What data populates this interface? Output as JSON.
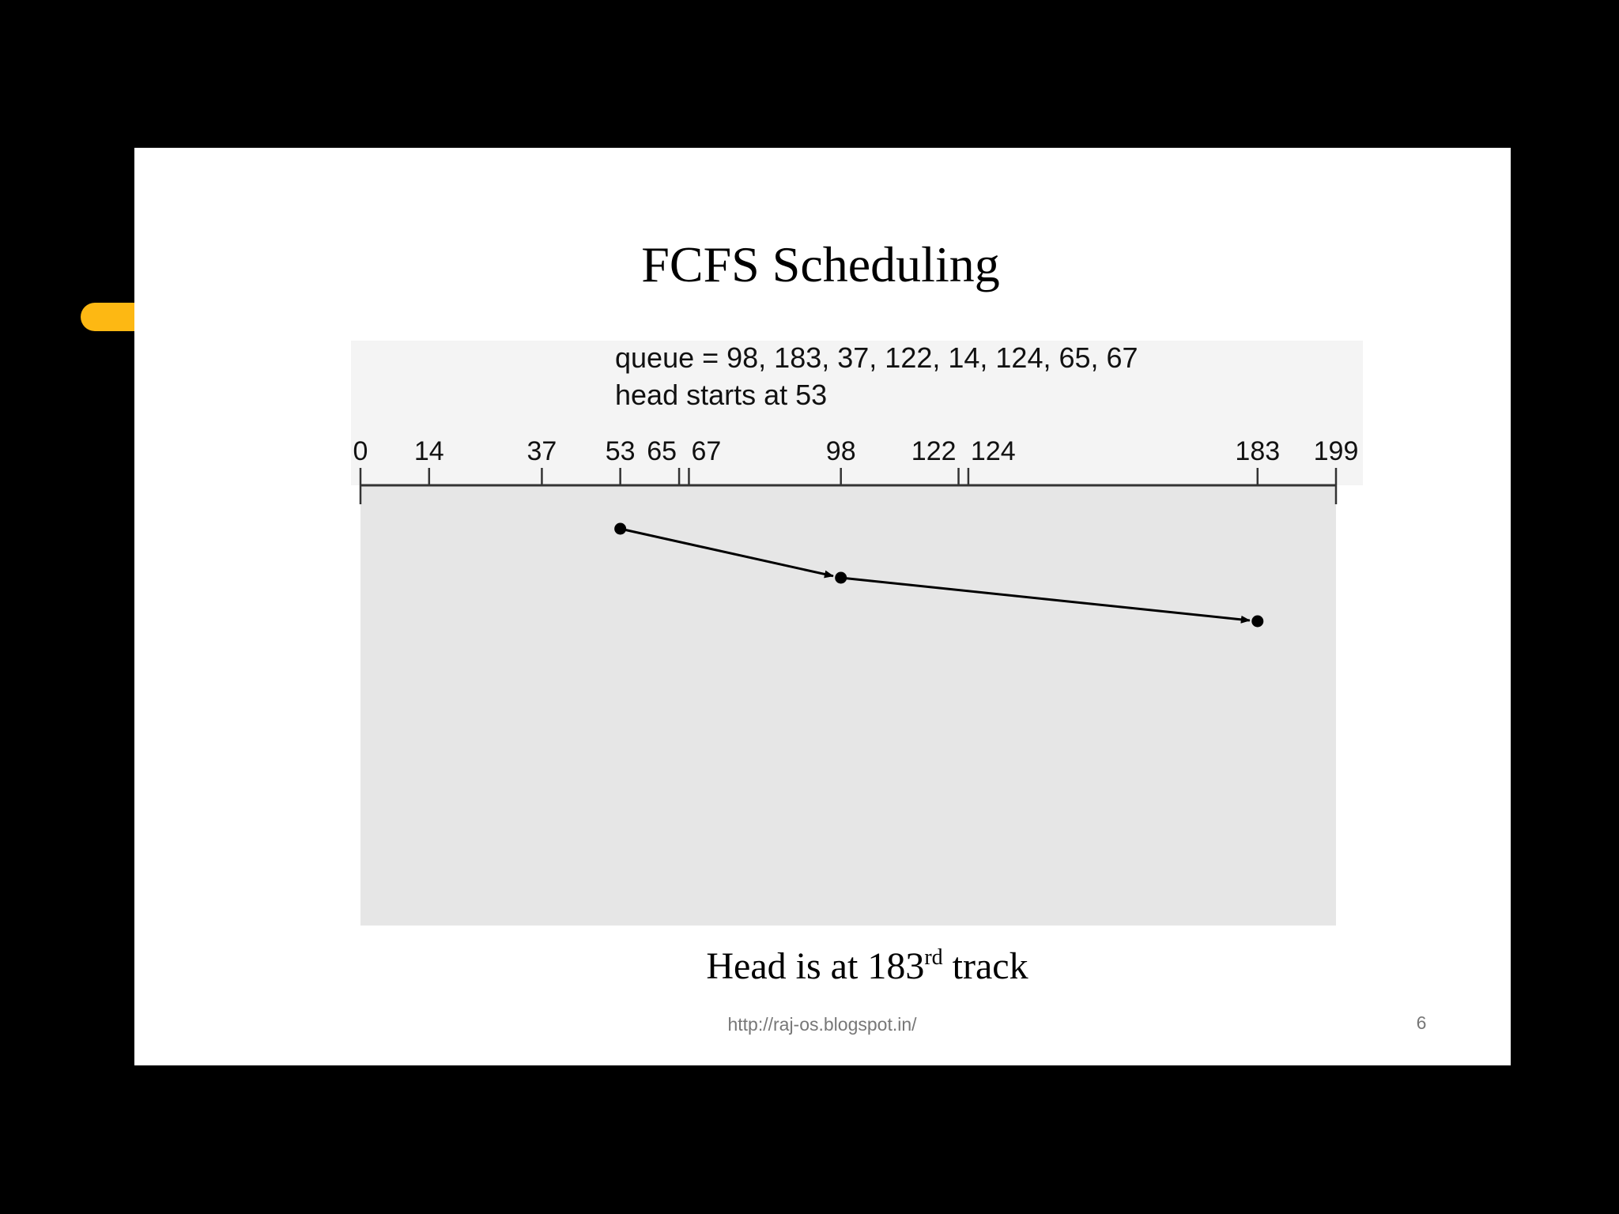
{
  "title": "FCFS Scheduling",
  "queue_text": "queue = 98, 183, 37, 122, 14, 124, 65, 67",
  "head_text": "head starts at 53",
  "axis": {
    "range": [
      0,
      199
    ],
    "ticks": [
      0,
      14,
      37,
      53,
      65,
      67,
      98,
      122,
      124,
      183,
      199
    ]
  },
  "path": [
    53,
    98,
    183
  ],
  "caption": [
    "Head is at 183",
    "rd",
    "track"
  ],
  "footer": "http://raj-os.blogspot.in/",
  "page_number": "6"
}
